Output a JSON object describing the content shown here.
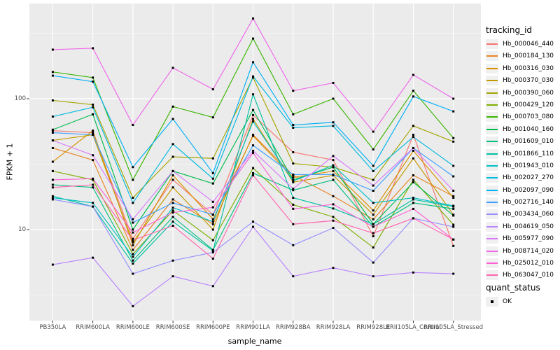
{
  "figure": {
    "x_axis_title": "sample_name",
    "y_axis_title": "FPKM + 1"
  },
  "legend": {
    "tracking_title": "tracking_id",
    "quant_title": "quant_status",
    "quant_items": [
      {
        "label": "OK",
        "symbol": "black-square"
      }
    ]
  },
  "colors": {
    "panel_bg": "#EBEBEB",
    "grid_major": "#FFFFFF",
    "grid_minor": "#FFFFFF",
    "tick": "#333333",
    "axis_text": "#4D4D4D",
    "marker": "#000000"
  },
  "chart_data": {
    "type": "line",
    "title": "",
    "xlabel": "sample_name",
    "ylabel": "FPKM + 1",
    "y_scale": "log10",
    "ylim": [
      2.1,
      520
    ],
    "y_major_ticks": [
      {
        "value": 100,
        "label": "100"
      },
      {
        "value": 10,
        "label": "10"
      }
    ],
    "y_minor_gridlines": [
      3.162,
      31.62,
      316.2
    ],
    "grid": true,
    "legend_position": "right",
    "marker": "black-square",
    "quant_status": "OK",
    "categories": [
      "PB350LA",
      "RRIM600LA",
      "RRIM600LE",
      "RRIM600SE",
      "RRIM600PE",
      "RRIM901LA",
      "RRIM928BA",
      "RRIM928LA",
      "RRIM928LE",
      "RRII105LA_Control",
      "RRII105LA_Stressed"
    ],
    "series": [
      {
        "name": "Hb_000046_440",
        "color": "#F8766D",
        "values": [
          57,
          55,
          8.5,
          24,
          13,
          75,
          39,
          34,
          8.9,
          53,
          7.5
        ]
      },
      {
        "name": "Hb_000184_130",
        "color": "#E88526",
        "values": [
          42,
          34,
          7,
          17,
          11,
          53,
          26,
          18,
          12,
          26,
          18
        ]
      },
      {
        "name": "Hb_000316_030",
        "color": "#D89000",
        "values": [
          33,
          57,
          7.6,
          26,
          12,
          52,
          25,
          28,
          14,
          40,
          17.5
        ]
      },
      {
        "name": "Hb_000370_030",
        "color": "#C49A00",
        "values": [
          48,
          53,
          8,
          21,
          10,
          70,
          23,
          26,
          13,
          35,
          13
        ]
      },
      {
        "name": "Hb_000390_060",
        "color": "#A3A500",
        "values": [
          97,
          90,
          17.5,
          36,
          35,
          145,
          32,
          30,
          24,
          62,
          47
        ]
      },
      {
        "name": "Hb_000429_120",
        "color": "#7CAE00",
        "values": [
          28,
          24,
          6.5,
          14,
          8.3,
          29.5,
          15.5,
          12.5,
          7.3,
          24,
          10.9
        ]
      },
      {
        "name": "Hb_000703_080",
        "color": "#39B600",
        "values": [
          160,
          145,
          24,
          87,
          72,
          288,
          76,
          100,
          41,
          115,
          50
        ]
      },
      {
        "name": "Hb_001040_160",
        "color": "#00BB4E",
        "values": [
          58,
          76,
          10,
          28,
          22.5,
          82,
          24,
          30,
          11,
          23,
          12.8
        ]
      },
      {
        "name": "Hb_001609_010",
        "color": "#00BF7D",
        "values": [
          22,
          21,
          5.8,
          12.5,
          7,
          27,
          20,
          24,
          10.5,
          16,
          14.4
        ]
      },
      {
        "name": "Hb_001866_110",
        "color": "#00C1A3",
        "values": [
          18,
          15,
          5.5,
          11.5,
          6.9,
          108,
          17.5,
          14.5,
          11,
          17,
          15
        ]
      },
      {
        "name": "Hb_001943_010",
        "color": "#00BFC4",
        "values": [
          17.5,
          16,
          6.2,
          14.7,
          11.5,
          67,
          23.5,
          31,
          16,
          17.5,
          15.2
        ]
      },
      {
        "name": "Hb_002027_270",
        "color": "#00BAE0",
        "values": [
          73,
          86,
          16,
          45,
          24.5,
          148,
          60,
          62,
          28,
          51,
          30.7
        ]
      },
      {
        "name": "Hb_002097_090",
        "color": "#00B0F6",
        "values": [
          150,
          135,
          30,
          70,
          27,
          190,
          63,
          66,
          30.7,
          104,
          80
        ]
      },
      {
        "name": "Hb_002716_140",
        "color": "#3DA1FF",
        "values": [
          55,
          53,
          11.3,
          16,
          13,
          44,
          26.3,
          26.3,
          19.8,
          42,
          25.5
        ]
      },
      {
        "name": "Hb_003434_060",
        "color": "#9590FF",
        "values": [
          17,
          15,
          4.6,
          5.8,
          6.7,
          11.5,
          7.6,
          10.3,
          5.6,
          12.2,
          10.5
        ]
      },
      {
        "name": "Hb_004619_050",
        "color": "#B983FF",
        "values": [
          5.4,
          6.1,
          2.6,
          4.4,
          3.7,
          10.5,
          4.4,
          5.1,
          4.4,
          4.7,
          4.6
        ]
      },
      {
        "name": "Hb_005977_090",
        "color": "#D878FC",
        "values": [
          48,
          37,
          12,
          28,
          16.3,
          40,
          20.5,
          36.5,
          21.7,
          42,
          19.8
        ]
      },
      {
        "name": "Hb_008714_020",
        "color": "#EF67EB",
        "values": [
          237,
          243,
          63,
          172,
          118,
          410,
          115,
          132,
          56,
          152,
          100
        ]
      },
      {
        "name": "Hb_025012_010",
        "color": "#FC61D5",
        "values": [
          24,
          24.5,
          9.5,
          13.5,
          14.8,
          38.5,
          14.4,
          15.6,
          10.5,
          14.4,
          8.4
        ]
      },
      {
        "name": "Hb_063047_010",
        "color": "#FF65B0",
        "values": [
          21,
          22,
          8.3,
          10.7,
          6,
          26,
          11,
          11.7,
          9.4,
          12.2,
          8.4
        ]
      }
    ]
  }
}
